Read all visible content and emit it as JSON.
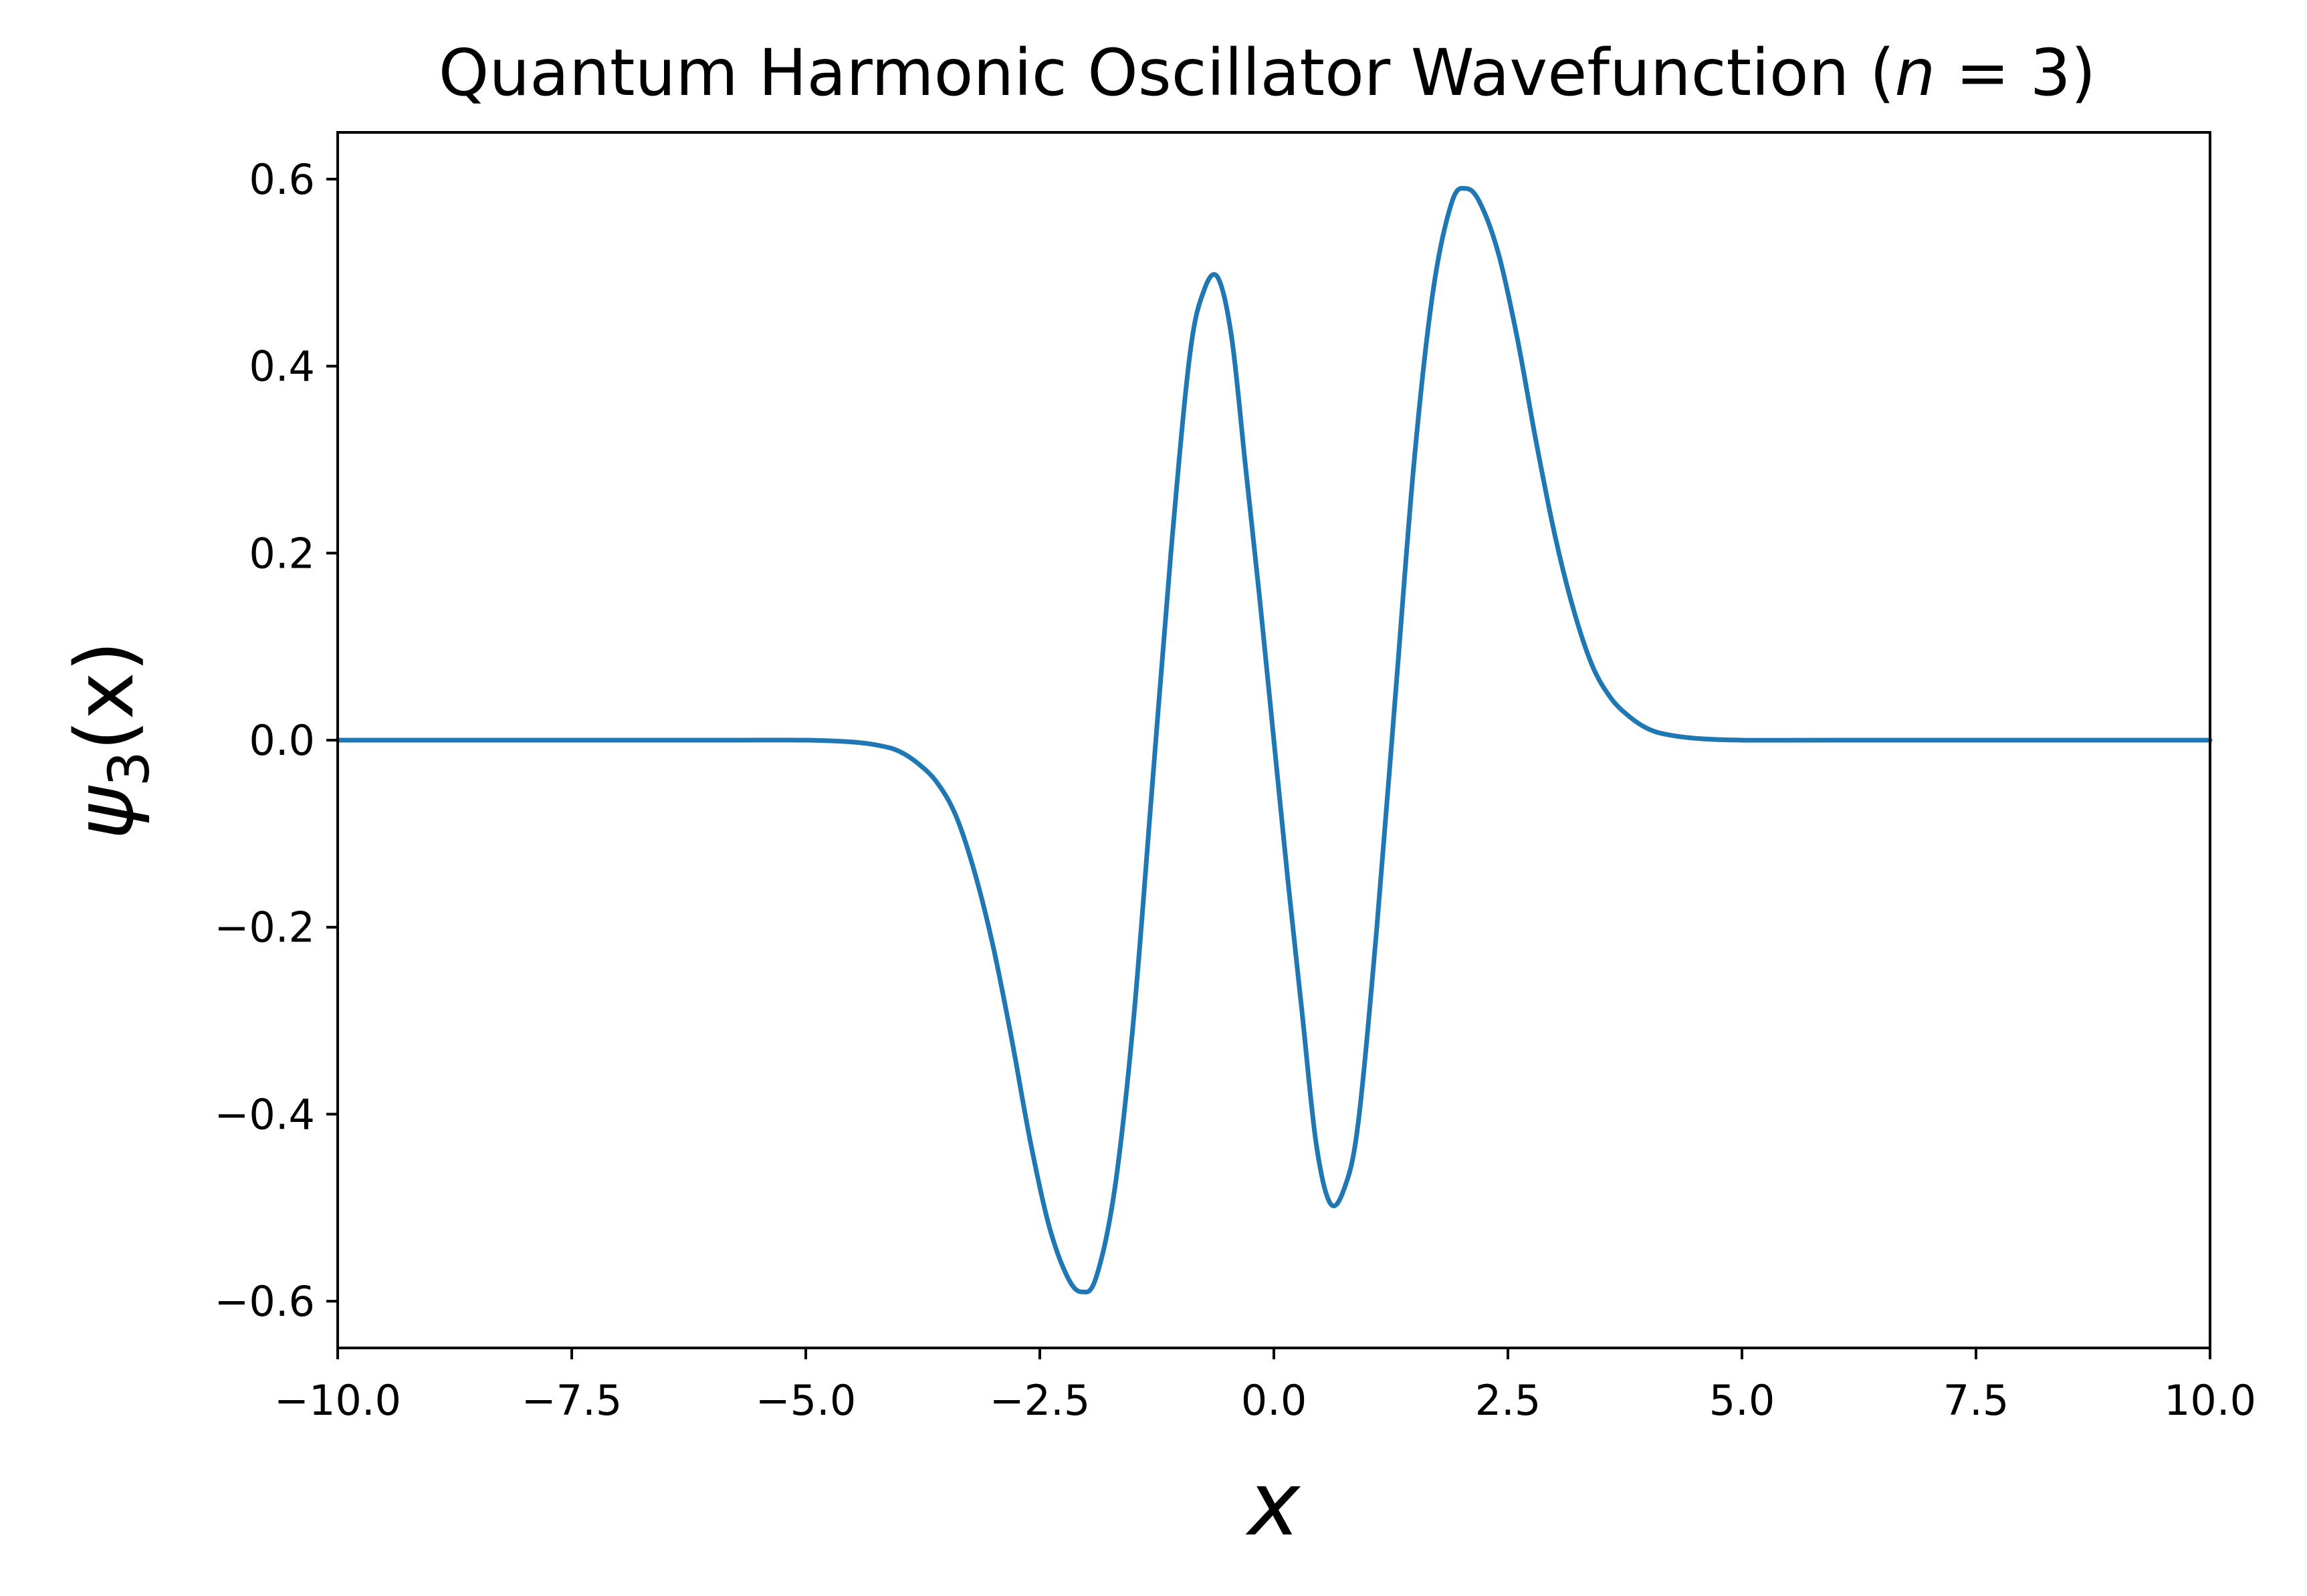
{
  "chart_data": {
    "type": "line",
    "title": "Quantum Harmonic Oscillator Wavefunction (n = 3)",
    "title_parts": {
      "prefix": "Quantum Harmonic Oscillator Wavefunction (",
      "var": "n",
      "equals": " = ",
      "value": "3",
      "suffix": ")"
    },
    "xlabel": "x",
    "ylabel": "ψ3(x)",
    "ylabel_parts": {
      "symbol": "ψ",
      "subscript": "3",
      "args": "(x)"
    },
    "xlim": [
      -10,
      10
    ],
    "ylim": [
      -0.65,
      0.65
    ],
    "xticks": [
      -10,
      -7.5,
      -5,
      -2.5,
      0,
      2.5,
      5,
      7.5,
      10
    ],
    "xtick_labels": [
      "−10.0",
      "−7.5",
      "−5.0",
      "−2.5",
      "0.0",
      "2.5",
      "5.0",
      "7.5",
      "10.0"
    ],
    "yticks": [
      -0.6,
      -0.4,
      -0.2,
      0,
      0.2,
      0.4,
      0.6
    ],
    "ytick_labels": [
      "−0.6",
      "−0.4",
      "−0.2",
      "0.0",
      "0.2",
      "0.4",
      "0.6"
    ],
    "grid": false,
    "series": [
      {
        "name": "ψ3(x)",
        "color": "#1f77b4",
        "x": [
          -10,
          -6,
          -5,
          -4.5,
          -4.2,
          -4,
          -3.8,
          -3.6,
          -3.4,
          -3.2,
          -3,
          -2.8,
          -2.6,
          -2.4,
          -2.2,
          -2.05,
          -1.9,
          -1.7,
          -1.5,
          -1.3,
          -1.1,
          -0.9,
          -0.75,
          -0.6,
          -0.45,
          -0.3,
          -0.15,
          0,
          0.15,
          0.3,
          0.45,
          0.6,
          0.75,
          0.9,
          1.1,
          1.3,
          1.5,
          1.7,
          1.9,
          2.05,
          2.2,
          2.4,
          2.6,
          2.8,
          3,
          3.2,
          3.4,
          3.6,
          3.8,
          4,
          4.2,
          4.5,
          5,
          6,
          10
        ],
        "values": [
          0,
          0,
          0,
          -0.002,
          -0.006,
          -0.012,
          -0.025,
          -0.045,
          -0.08,
          -0.14,
          -0.22,
          -0.32,
          -0.43,
          -0.52,
          -0.575,
          -0.59,
          -0.575,
          -0.48,
          -0.3,
          -0.05,
          0.2,
          0.41,
          0.48,
          0.495,
          0.43,
          0.29,
          0.15,
          0,
          -0.15,
          -0.29,
          -0.43,
          -0.495,
          -0.48,
          -0.41,
          -0.2,
          0.05,
          0.3,
          0.48,
          0.575,
          0.59,
          0.575,
          0.52,
          0.43,
          0.32,
          0.22,
          0.14,
          0.08,
          0.045,
          0.025,
          0.012,
          0.006,
          0.002,
          0,
          0,
          0
        ]
      }
    ]
  }
}
